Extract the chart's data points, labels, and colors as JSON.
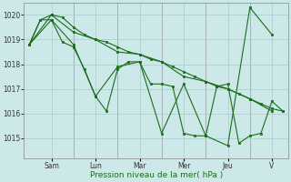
{
  "background_color": "#cce8e8",
  "grid_color": "#aacccc",
  "line_color": "#1a6e1a",
  "marker_color": "#1a6e1a",
  "xlabel": "Pression niveau de la mer( hPa )",
  "ylim": [
    1014.2,
    1020.5
  ],
  "yticks": [
    1015,
    1016,
    1017,
    1018,
    1019,
    1020
  ],
  "day_labels": [
    "Sam",
    "Lun",
    "Mar",
    "Mer",
    "Jeu",
    "V"
  ],
  "day_tick_x": [
    2,
    6,
    10,
    14,
    18,
    22
  ],
  "xlim": [
    -0.5,
    23.5
  ],
  "series": [
    {
      "x": [
        0,
        1,
        2,
        3,
        4,
        5,
        6,
        7,
        8,
        9,
        10,
        11,
        12,
        13,
        14,
        15,
        16,
        17,
        18,
        19,
        20,
        21,
        22,
        23
      ],
      "y": [
        1018.8,
        1019.8,
        1020.0,
        1019.9,
        1019.5,
        1019.2,
        1019.0,
        1018.9,
        1018.7,
        1018.5,
        1018.4,
        1018.2,
        1018.1,
        1017.9,
        1017.7,
        1017.5,
        1017.3,
        1017.1,
        1017.0,
        1016.8,
        1016.6,
        1016.4,
        1016.2,
        1016.1
      ]
    },
    {
      "x": [
        0,
        1,
        2,
        3,
        4,
        5,
        6,
        7,
        8,
        9,
        10,
        11,
        12,
        13,
        14,
        15,
        16,
        17,
        18,
        19,
        20,
        21,
        22,
        23
      ],
      "y": [
        1018.8,
        1019.8,
        1019.8,
        1018.9,
        1018.7,
        1017.8,
        1016.7,
        1016.1,
        1017.8,
        1018.1,
        1018.1,
        1017.2,
        1017.2,
        1017.1,
        1015.2,
        1015.1,
        1015.1,
        1017.1,
        1017.2,
        1014.8,
        1015.1,
        1015.2,
        1016.5,
        1016.1
      ]
    },
    {
      "x": [
        0,
        2,
        4,
        6,
        8,
        10,
        12,
        14,
        16,
        18,
        20,
        22
      ],
      "y": [
        1018.8,
        1020.0,
        1019.3,
        1019.0,
        1018.5,
        1018.4,
        1018.1,
        1017.5,
        1017.3,
        1017.0,
        1016.6,
        1016.1
      ]
    },
    {
      "x": [
        0,
        2,
        4,
        6,
        8,
        10,
        12,
        14,
        16,
        18,
        20,
        22
      ],
      "y": [
        1018.8,
        1019.8,
        1018.8,
        1016.7,
        1017.9,
        1018.1,
        1015.2,
        1017.2,
        1015.1,
        1014.7,
        1020.3,
        1019.2
      ]
    }
  ],
  "series2": [
    {
      "x": [
        0,
        1,
        2,
        3,
        4,
        5,
        6,
        7,
        8,
        9,
        10,
        11,
        12,
        13,
        14,
        15,
        16,
        17,
        18,
        19,
        20,
        21,
        22,
        23
      ],
      "y": [
        1018.8,
        1019.8,
        1020.0,
        1019.9,
        1019.5,
        1019.2,
        1019.0,
        1018.9,
        1018.7,
        1018.5,
        1018.4,
        1018.2,
        1018.1,
        1017.9,
        1017.7,
        1017.5,
        1017.3,
        1017.1,
        1017.0,
        1016.8,
        1016.6,
        1016.4,
        1016.2,
        1016.1
      ]
    },
    {
      "x": [
        0,
        1,
        2,
        3,
        4,
        5,
        6,
        7,
        8,
        9,
        10,
        11,
        12,
        13,
        14,
        15,
        16,
        17,
        18,
        19,
        20,
        21,
        22,
        23
      ],
      "y": [
        1018.8,
        1019.8,
        1019.8,
        1018.9,
        1018.7,
        1017.8,
        1016.7,
        1016.1,
        1017.8,
        1018.1,
        1018.1,
        1017.2,
        1017.2,
        1017.1,
        1015.2,
        1015.1,
        1015.1,
        1017.1,
        1017.2,
        1014.8,
        1015.1,
        1015.2,
        1016.5,
        1016.1
      ]
    },
    {
      "x": [
        0,
        2,
        4,
        6,
        8,
        10,
        12,
        14,
        16,
        18,
        20,
        22
      ],
      "y": [
        1018.8,
        1020.0,
        1019.3,
        1019.0,
        1018.5,
        1018.4,
        1018.1,
        1017.5,
        1017.3,
        1017.0,
        1016.6,
        1016.1
      ]
    },
    {
      "x": [
        0,
        2,
        4,
        6,
        8,
        10,
        12,
        14,
        16,
        18,
        20,
        22
      ],
      "y": [
        1018.8,
        1019.8,
        1018.8,
        1016.7,
        1017.9,
        1018.1,
        1015.2,
        1017.2,
        1015.1,
        1014.7,
        1020.3,
        1019.2
      ]
    }
  ],
  "line1_x": [
    0,
    1,
    2,
    3,
    4,
    5,
    6,
    7,
    8,
    9,
    10,
    11,
    12,
    13,
    14,
    15,
    16,
    17,
    18,
    19,
    20,
    21,
    22,
    23
  ],
  "line1_y": [
    1018.8,
    1019.8,
    1020.0,
    1019.9,
    1019.5,
    1019.2,
    1019.0,
    1018.9,
    1018.7,
    1018.5,
    1018.4,
    1018.2,
    1018.1,
    1017.9,
    1017.7,
    1017.5,
    1017.3,
    1017.1,
    1017.0,
    1016.8,
    1016.6,
    1016.4,
    1016.2,
    1016.1
  ],
  "line2_x": [
    0,
    1,
    2,
    3,
    4,
    5,
    6,
    7,
    8,
    9,
    10,
    11,
    12,
    13,
    14,
    15,
    16,
    17,
    18,
    19,
    20,
    21,
    22,
    23
  ],
  "line2_y": [
    1018.8,
    1019.8,
    1019.8,
    1018.9,
    1018.7,
    1017.8,
    1016.7,
    1016.1,
    1017.8,
    1018.1,
    1018.1,
    1017.2,
    1017.2,
    1017.1,
    1015.2,
    1015.1,
    1015.1,
    1017.1,
    1017.2,
    1014.8,
    1015.1,
    1015.2,
    1016.5,
    1016.1
  ],
  "line3_x": [
    0,
    2,
    4,
    6,
    8,
    10,
    12,
    14,
    16,
    18,
    20,
    22
  ],
  "line3_y": [
    1018.8,
    1020.0,
    1019.3,
    1019.0,
    1018.5,
    1018.4,
    1018.1,
    1017.5,
    1017.3,
    1017.0,
    1016.6,
    1016.1
  ],
  "line4_x": [
    0,
    2,
    4,
    6,
    8,
    10,
    12,
    14,
    16,
    18,
    20,
    22
  ],
  "line4_y": [
    1018.8,
    1019.8,
    1018.8,
    1016.7,
    1017.9,
    1018.1,
    1015.2,
    1017.2,
    1015.1,
    1014.7,
    1020.3,
    1019.2
  ]
}
